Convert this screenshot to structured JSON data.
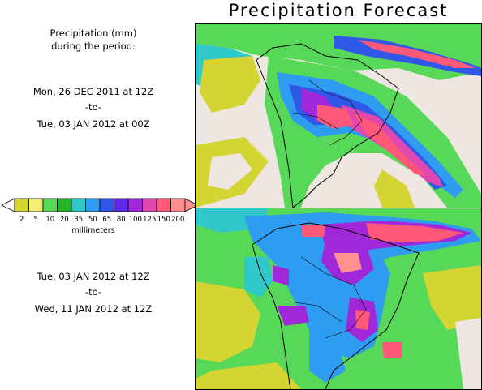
{
  "header": {
    "title": "Precipitation Forecast"
  },
  "intro": {
    "line1": "Precipitation (mm)",
    "line2": "during the period:"
  },
  "period1": {
    "start": "Mon, 26 DEC 2011 at 12Z",
    "sep": "-to-",
    "end": "Tue, 03 JAN 2012 at 00Z"
  },
  "period2": {
    "start": "Tue, 03 JAN 2012 at 12Z",
    "sep": "-to-",
    "end": "Wed, 11 JAN 2012 at 12Z"
  },
  "legend": {
    "unit": "millimeters",
    "ticks": [
      "2",
      "5",
      "10",
      "20",
      "35",
      "50",
      "65",
      "80",
      "100",
      "125",
      "150",
      "200"
    ],
    "colors": [
      "#d4d433",
      "#f0f078",
      "#58d858",
      "#28b428",
      "#2ec8c8",
      "#2e9cf0",
      "#3058e8",
      "#6028e8",
      "#a028d8",
      "#e048b0",
      "#ff5878",
      "#ff9090"
    ]
  },
  "map_colors": {
    "land_bg": "#eee6e0",
    "ocean_bg": "#eee6e0"
  }
}
